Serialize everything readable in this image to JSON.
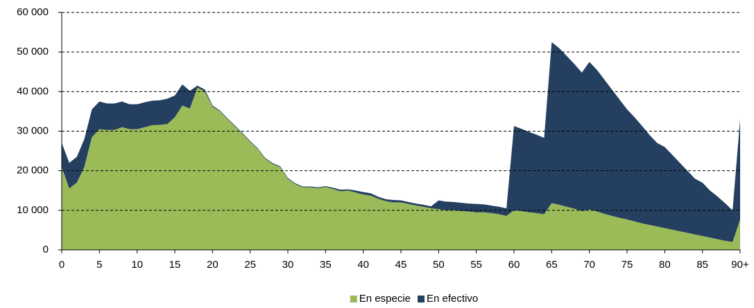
{
  "chart_data": {
    "type": "area",
    "stacked": true,
    "categories": [
      "0",
      null,
      null,
      null,
      null,
      "5",
      null,
      null,
      null,
      null,
      "10",
      null,
      null,
      null,
      null,
      "15",
      null,
      null,
      null,
      null,
      "20",
      null,
      null,
      null,
      null,
      "25",
      null,
      null,
      null,
      null,
      "30",
      null,
      null,
      null,
      null,
      "35",
      null,
      null,
      null,
      null,
      "40",
      null,
      null,
      null,
      null,
      "45",
      null,
      null,
      null,
      null,
      "50",
      null,
      null,
      null,
      null,
      "55",
      null,
      null,
      null,
      null,
      "60",
      null,
      null,
      null,
      null,
      "65",
      null,
      null,
      null,
      null,
      "70",
      null,
      null,
      null,
      null,
      "75",
      null,
      null,
      null,
      null,
      "80",
      null,
      null,
      null,
      null,
      "85",
      null,
      null,
      null,
      null,
      "90+"
    ],
    "series": [
      {
        "name": "En especie",
        "color": "#9bbb59",
        "values": [
          21000,
          15500,
          17000,
          21000,
          28500,
          30500,
          30300,
          30300,
          31000,
          30500,
          30500,
          31000,
          31500,
          31600,
          31800,
          33500,
          36500,
          35700,
          41000,
          40000,
          36200,
          35000,
          33000,
          31200,
          29300,
          27300,
          25500,
          23000,
          21700,
          20900,
          18000,
          16600,
          15800,
          15800,
          15600,
          15900,
          15400,
          14800,
          15000,
          14500,
          14000,
          13700,
          12900,
          12300,
          12000,
          12000,
          11600,
          11200,
          10900,
          10500,
          10300,
          10000,
          10000,
          9800,
          9700,
          9500,
          9500,
          9300,
          9000,
          8600,
          10000,
          9800,
          9500,
          9300,
          9000,
          11800,
          11400,
          10900,
          10400,
          9800,
          10200,
          9700,
          9100,
          8600,
          8100,
          7700,
          7200,
          6700,
          6300,
          5900,
          5500,
          5100,
          4700,
          4300,
          3900,
          3500,
          3100,
          2700,
          2300,
          2000,
          7700
        ]
      },
      {
        "name": "En efectivo",
        "color": "#243f60",
        "values": [
          6000,
          6500,
          6500,
          7000,
          7000,
          7000,
          6700,
          6700,
          6500,
          6300,
          6300,
          6300,
          6200,
          6200,
          6400,
          5500,
          5300,
          4500,
          500,
          500,
          300,
          200,
          200,
          200,
          200,
          200,
          200,
          200,
          200,
          200,
          200,
          200,
          200,
          200,
          200,
          200,
          300,
          400,
          300,
          500,
          600,
          600,
          500,
          500,
          600,
          500,
          500,
          500,
          500,
          500,
          2200,
          2200,
          2100,
          2100,
          2000,
          2100,
          2000,
          1900,
          1900,
          1900,
          21300,
          20800,
          20300,
          19800,
          19300,
          40700,
          39600,
          38100,
          36600,
          35000,
          37300,
          35800,
          33900,
          31900,
          29900,
          27800,
          26300,
          24600,
          22700,
          21100,
          20500,
          18900,
          17300,
          15700,
          14100,
          13500,
          11900,
          10800,
          9500,
          8000,
          25300
        ]
      }
    ],
    "ylim": [
      0,
      60000
    ],
    "yticks": [
      {
        "value": 0,
        "label": "0"
      },
      {
        "value": 10000,
        "label": "10 000"
      },
      {
        "value": 20000,
        "label": "20 000"
      },
      {
        "value": 30000,
        "label": "30 000"
      },
      {
        "value": 40000,
        "label": "40 000"
      },
      {
        "value": 50000,
        "label": "50 000"
      },
      {
        "value": 60000,
        "label": "60 000"
      }
    ],
    "grid": true,
    "legend": "bottom"
  }
}
